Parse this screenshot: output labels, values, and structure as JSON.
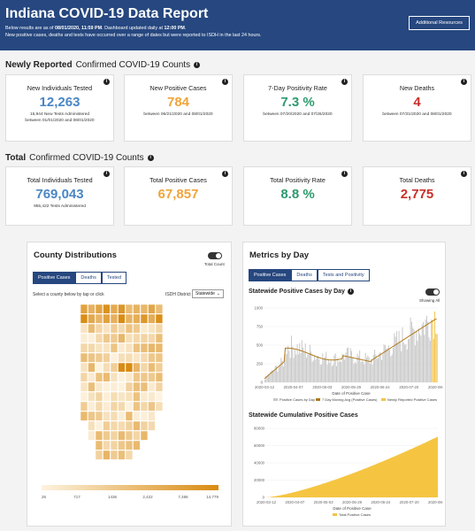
{
  "header": {
    "title": "Indiana COVID-19 Data Report",
    "line1_pre": "Below results are as of ",
    "line1_date": "08/01/2020, 11:59 PM",
    "line1_mid": ". Dashboard updated daily at ",
    "line1_time": "12:00 PM",
    "line1_end": ".",
    "line2": "New positive cases, deaths and tests have occurred over a range of dates but were reported to ISDH in the last 24 hours.",
    "resources_button": "Additional Resources"
  },
  "newly": {
    "title_bold": "Newly Reported",
    "title_rest": "Confirmed COVID-19 Counts",
    "cards": [
      {
        "label": "New Individuals Tested",
        "value": "12,263",
        "note1": "15,944 New Tests Administered",
        "note2": "between 01/01/2020 and 08/01/2020"
      },
      {
        "label": "New Positive Cases",
        "value": "784",
        "note1": "between 06/21/2020 and 08/01/2020",
        "note2": ""
      },
      {
        "label": "7-Day Positivity Rate",
        "value": "7.3 %",
        "note1": "between 07/20/2020 and 07/26/2020",
        "note2": ""
      },
      {
        "label": "New Deaths",
        "value": "4",
        "note1": "between 07/31/2020 and 08/01/2020",
        "note2": ""
      }
    ]
  },
  "total": {
    "title_bold": "Total",
    "title_rest": "Confirmed COVID-19 Counts",
    "cards": [
      {
        "label": "Total Individuals Tested",
        "value": "769,043",
        "note1": "955,422 Tests Administered"
      },
      {
        "label": "Total Positive Cases",
        "value": "67,857",
        "note1": ""
      },
      {
        "label": "Total Positivity Rate",
        "value": "8.8 %",
        "note1": ""
      },
      {
        "label": "Total Deaths",
        "value": "2,775",
        "note1": ""
      }
    ]
  },
  "county": {
    "title": "County Distributions",
    "toggle_label": "Total Count",
    "tabs": [
      "Positive Cases",
      "Deaths",
      "Tested"
    ],
    "instruction": "Select a county below by tap or click",
    "district_label": "ISDH District",
    "district_value": "Statewide",
    "legend_ticks": [
      "26",
      "717",
      "1436",
      "2,422",
      "7,486",
      "14,779"
    ],
    "colors": {
      "low": "#fdf3e0",
      "high": "#d98b12"
    }
  },
  "metrics": {
    "title": "Metrics by Day",
    "tabs": [
      "Positive Cases",
      "Deaths",
      "Tests and Positivity"
    ],
    "daily": {
      "title": "Statewide Positive Cases by Day",
      "toggle_label": "Showing All",
      "y_ticks": [
        "1000",
        "750",
        "500",
        "250",
        "0"
      ],
      "x_ticks": [
        "2020-03-12",
        "2020-04-07",
        "2020-05-03",
        "2020-05-29",
        "2020-06-24",
        "2020-07-20",
        "2020-08-31"
      ],
      "x_label": "Date of Positive Case",
      "legend": [
        "Positive Cases by Day",
        "7 Day Moving Avg (Positive Cases)",
        "Newly Reported Positive Cases"
      ]
    },
    "cumulative": {
      "title": "Statewide Cumulative Positive Cases",
      "y_ticks": [
        "80000",
        "60000",
        "40000",
        "20000",
        "0"
      ],
      "x_ticks": [
        "2020-03-12",
        "2020-04-07",
        "2020-05-03",
        "2020-05-29",
        "2020-06-24",
        "2020-07-20",
        "2020-08-31"
      ],
      "x_label": "Date of Positive Case",
      "legend": [
        "Total Positive Cases"
      ]
    },
    "colors": {
      "bars": "#c8c8c8",
      "avg": "#b07a1a",
      "new": "#f3c44a",
      "cum": "#f5c542"
    }
  }
}
